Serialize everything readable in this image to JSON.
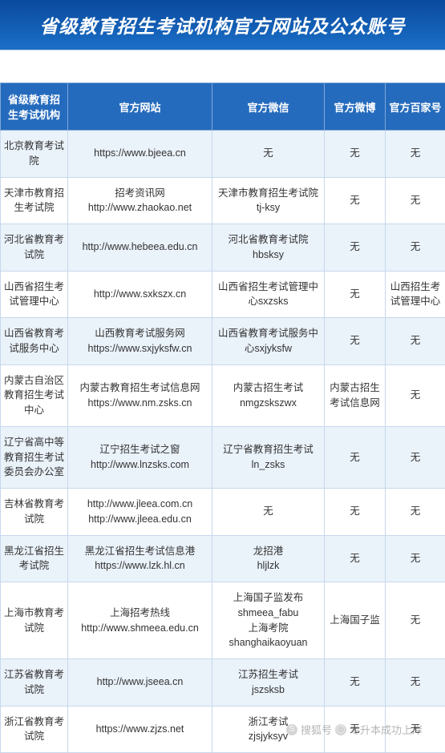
{
  "title": "省级教育招生考试机构官方网站及公众账号",
  "columns": [
    "省级教育招生考试机构",
    "官方网站",
    "官方微信",
    "官方微博",
    "官方百家号"
  ],
  "rows": [
    {
      "org": "北京教育考试院",
      "web": "https://www.bjeea.cn",
      "wx": "无",
      "wb": "无",
      "bj": "无"
    },
    {
      "org": "天津市教育招生考试院",
      "web": "招考资讯网\nhttp://www.zhaokao.net",
      "wx": "天津市教育招生考试院\ntj-ksy",
      "wb": "无",
      "bj": "无"
    },
    {
      "org": "河北省教育考试院",
      "web": "http://www.hebeea.edu.cn",
      "wx": "河北省教育考试院\nhbsksy",
      "wb": "无",
      "bj": "无"
    },
    {
      "org": "山西省招生考试管理中心",
      "web": "http://www.sxkszx.cn",
      "wx": "山西省招生考试管理中心sxzsks",
      "wb": "无",
      "bj": "山西招生考试管理中心"
    },
    {
      "org": "山西省教育考试服务中心",
      "web": "山西教育考试服务网\nhttps://www.sxjyksfw.cn",
      "wx": "山西省教育考试服务中心sxjyksfw",
      "wb": "无",
      "bj": "无"
    },
    {
      "org": "内蒙古自治区教育招生考试中心",
      "web": "内蒙古教育招生考试信息网\nhttps://www.nm.zsks.cn",
      "wx": "内蒙古招生考试\nnmgzskszwx",
      "wb": "内蒙古招生考试信息网",
      "bj": "无"
    },
    {
      "org": "辽宁省高中等教育招生考试委员会办公室",
      "web": "辽宁招生考试之窗\nhttp://www.lnzsks.com",
      "wx": "辽宁省教育招生考试\nln_zsks",
      "wb": "无",
      "bj": "无"
    },
    {
      "org": "吉林省教育考试院",
      "web": "http://www.jleea.com.cn\nhttp://www.jleea.edu.cn",
      "wx": "无",
      "wb": "无",
      "bj": "无"
    },
    {
      "org": "黑龙江省招生考试院",
      "web": "黑龙江省招生考试信息港\nhttps://www.lzk.hl.cn",
      "wx": "龙招港\nhljlzk",
      "wb": "无",
      "bj": "无"
    },
    {
      "org": "上海市教育考试院",
      "web": "上海招考热线\nhttp://www.shmeea.edu.cn",
      "wx": "上海国子监发布\nshmeea_fabu\n上海考院\nshanghaikaoyuan",
      "wb": "上海国子监",
      "bj": "无"
    },
    {
      "org": "江苏省教育考试院",
      "web": "http://www.jseea.cn",
      "wx": "江苏招生考试\njszsksb",
      "wb": "无",
      "bj": "无"
    },
    {
      "org": "浙江省教育考试院",
      "web": "https://www.zjzs.net",
      "wx": "浙江考试\nzjsjyksyv",
      "wb": "无",
      "bj": "无"
    }
  ],
  "watermark": {
    "prefix": "搜狐号",
    "suffix": "专升本成功上岸"
  },
  "colors": {
    "header_bg": "#256bbd",
    "header_border": "#7fa6d5",
    "row_odd": "#eaf2fa",
    "row_even": "#ffffff",
    "cell_border": "#c7d8ec",
    "title_grad_top": "#0a4a9e",
    "title_grad_bot": "#1b6fc7"
  },
  "typography": {
    "title_fontsize": 23,
    "header_fontsize": 13,
    "cell_fontsize": 12.5
  }
}
